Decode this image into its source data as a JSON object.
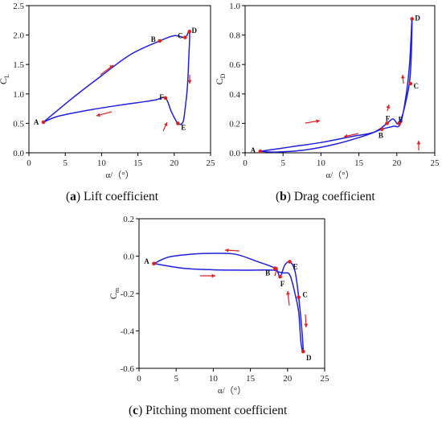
{
  "colors": {
    "curve": "#1f1fe0",
    "point": "#e02020",
    "arrow": "#e02020",
    "axis": "#000000"
  },
  "captions": [
    {
      "letter": "a",
      "text": "Lift coefficient"
    },
    {
      "letter": "b",
      "text": "Drag coefficient"
    },
    {
      "letter": "c",
      "text": "Pitching moment coefficient"
    }
  ],
  "chart_data": [
    {
      "type": "line",
      "ylabel_main": "C",
      "ylabel_sub": "L",
      "xlabel": "α/（°）",
      "xlim": [
        0,
        25
      ],
      "ylim": [
        0,
        2.5
      ],
      "xticks": [
        "0",
        "5",
        "10",
        "15",
        "20",
        "25"
      ],
      "yticks": [
        "0.0",
        "0.5",
        "1.0",
        "1.5",
        "2.0",
        "2.5"
      ],
      "xtick_values": [
        0,
        5,
        10,
        15,
        20,
        25
      ],
      "ytick_values": [
        0,
        0.5,
        1.0,
        1.5,
        2.0,
        2.5
      ],
      "series": [
        {
          "x": [
            2.0,
            6,
            10,
            14,
            18.0,
            20,
            21.5,
            22.1,
            22.0,
            21.8,
            21.5,
            21.2,
            20.5,
            19.6,
            18.8,
            17.5,
            16.0,
            12,
            8,
            4,
            2.0
          ],
          "y": [
            0.52,
            0.93,
            1.31,
            1.67,
            1.9,
            1.99,
            1.96,
            2.06,
            1.6,
            1.1,
            0.75,
            0.52,
            0.5,
            0.7,
            0.93,
            0.9,
            0.87,
            0.8,
            0.72,
            0.62,
            0.52
          ]
        }
      ],
      "points": [
        {
          "label": "A",
          "x": 2.0,
          "y": 0.52
        },
        {
          "label": "B",
          "x": 18.0,
          "y": 1.9
        },
        {
          "label": "C",
          "x": 21.5,
          "y": 1.96
        },
        {
          "label": "D",
          "x": 22.1,
          "y": 2.06
        },
        {
          "label": "E",
          "x": 20.5,
          "y": 0.5
        },
        {
          "label": "F",
          "x": 18.8,
          "y": 0.93
        }
      ]
    },
    {
      "type": "line",
      "ylabel_main": "C",
      "ylabel_sub": "D",
      "xlabel": "α/（°）",
      "xlim": [
        0,
        25
      ],
      "ylim": [
        0,
        1.0
      ],
      "xticks": [
        "0",
        "5",
        "10",
        "15",
        "20",
        "25"
      ],
      "yticks": [
        "0.0",
        "0.2",
        "0.4",
        "0.6",
        "0.8",
        "1.0"
      ],
      "xtick_values": [
        0,
        5,
        10,
        15,
        20,
        25
      ],
      "ytick_values": [
        0,
        0.2,
        0.4,
        0.6,
        0.8,
        1.0
      ],
      "series": [
        {
          "x": [
            2.0,
            6,
            10,
            14,
            17,
            18.7,
            19.5,
            20.3,
            21.2,
            21.8,
            22.0,
            21.7,
            21.3,
            20.5,
            19.5,
            18.0,
            16,
            12,
            8,
            4,
            2.0
          ],
          "y": [
            0.01,
            0.04,
            0.07,
            0.11,
            0.14,
            0.2,
            0.23,
            0.2,
            0.35,
            0.55,
            0.91,
            0.62,
            0.42,
            0.2,
            0.18,
            0.16,
            0.12,
            0.06,
            0.02,
            0.005,
            0.01
          ]
        }
      ],
      "points": [
        {
          "label": "A",
          "x": 2.0,
          "y": 0.01
        },
        {
          "label": "B",
          "x": 18.0,
          "y": 0.16
        },
        {
          "label": "C",
          "x": 21.8,
          "y": 0.47
        },
        {
          "label": "D",
          "x": 22.0,
          "y": 0.91
        },
        {
          "label": "E",
          "x": 20.3,
          "y": 0.2
        },
        {
          "label": "F",
          "x": 18.7,
          "y": 0.2
        }
      ]
    },
    {
      "type": "line",
      "ylabel_main": "C",
      "ylabel_sub": "m",
      "xlabel": "α/（°）",
      "xlim": [
        0,
        25
      ],
      "ylim": [
        -0.6,
        0.2
      ],
      "xticks": [
        "0",
        "5",
        "10",
        "15",
        "20",
        "25"
      ],
      "yticks": [
        "-0.6",
        "-0.4",
        "-0.2",
        "0.0",
        "0.2"
      ],
      "xtick_values": [
        0,
        5,
        10,
        15,
        20,
        25
      ],
      "ytick_values": [
        -0.6,
        -0.4,
        -0.2,
        0.0,
        0.2
      ],
      "series": [
        {
          "x": [
            2.0,
            4,
            7,
            10,
            13,
            16,
            18.3,
            19.0,
            19.6,
            20.3,
            21.0,
            21.5,
            21.9,
            22.1,
            21.8,
            21.5,
            21.0,
            20.3,
            19.5,
            18.8,
            18.0,
            14,
            10,
            6,
            2.0
          ],
          "y": [
            -0.04,
            -0.005,
            0.01,
            0.015,
            0.01,
            -0.03,
            -0.065,
            -0.11,
            -0.05,
            -0.03,
            -0.08,
            -0.22,
            -0.38,
            -0.51,
            -0.46,
            -0.3,
            -0.2,
            -0.1,
            -0.09,
            -0.085,
            -0.075,
            -0.075,
            -0.073,
            -0.065,
            -0.04
          ]
        }
      ],
      "points": [
        {
          "label": "A",
          "x": 2.0,
          "y": -0.04
        },
        {
          "label": "B",
          "x": 18.3,
          "y": -0.065
        },
        {
          "label": "C",
          "x": 21.5,
          "y": -0.22
        },
        {
          "label": "D",
          "x": 22.1,
          "y": -0.51
        },
        {
          "label": "E",
          "x": 20.3,
          "y": -0.03
        },
        {
          "label": "F",
          "x": 19.0,
          "y": -0.11
        }
      ]
    }
  ]
}
